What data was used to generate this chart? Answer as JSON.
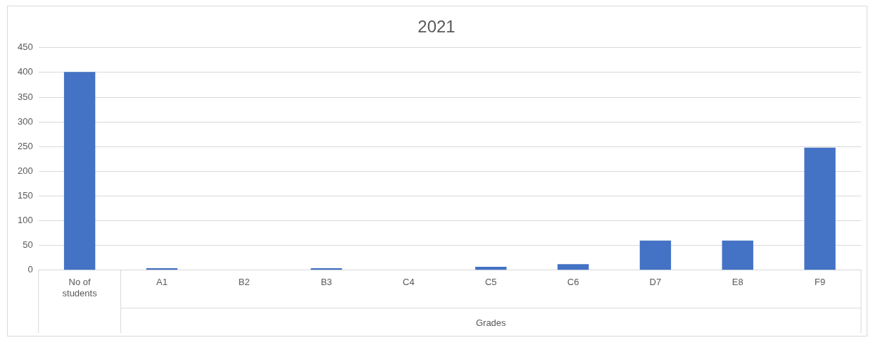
{
  "chart_data": {
    "type": "bar",
    "title": "2021",
    "xlabel": "Grades",
    "categories": [
      "No of students",
      "A1",
      "B2",
      "B3",
      "C4",
      "C5",
      "C6",
      "D7",
      "E8",
      "F9"
    ],
    "values": [
      401,
      4,
      0,
      4,
      0,
      7,
      12,
      60,
      60,
      248
    ],
    "color": "#4472c4",
    "ylim": [
      0,
      450
    ],
    "yticks": [
      0,
      50,
      100,
      150,
      200,
      250,
      300,
      350,
      400,
      450
    ],
    "grid": "y",
    "legend": false
  }
}
